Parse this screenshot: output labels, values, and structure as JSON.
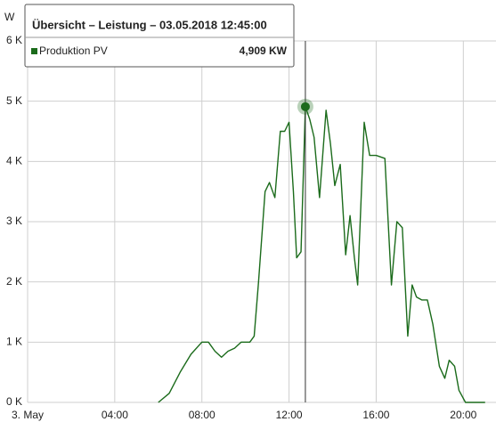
{
  "chart_data": {
    "type": "line",
    "ylabel": "W",
    "x": [
      6.0,
      6.5,
      7.0,
      7.5,
      8.0,
      8.3,
      8.6,
      8.9,
      9.2,
      9.5,
      9.8,
      10.2,
      10.4,
      10.6,
      10.9,
      11.1,
      11.35,
      11.6,
      11.8,
      12.0,
      12.2,
      12.35,
      12.55,
      12.75,
      12.95,
      13.15,
      13.4,
      13.7,
      13.9,
      14.1,
      14.35,
      14.6,
      14.8,
      15.0,
      15.15,
      15.45,
      15.7,
      16.0,
      16.4,
      16.7,
      16.95,
      17.2,
      17.45,
      17.65,
      17.85,
      18.1,
      18.35,
      18.6,
      18.9,
      19.15,
      19.35,
      19.6,
      19.8,
      20.1,
      21.0
    ],
    "series": [
      {
        "name": "Produktion PV",
        "color": "#1b6b1b",
        "values": [
          0,
          150,
          500,
          800,
          1000,
          1000,
          850,
          750,
          850,
          900,
          1000,
          1000,
          1100,
          2000,
          3500,
          3650,
          3400,
          4500,
          4500,
          4650,
          3500,
          2400,
          2500,
          4909,
          4700,
          4400,
          3400,
          4850,
          4300,
          3600,
          3950,
          2450,
          3100,
          2400,
          1950,
          4650,
          4100,
          4100,
          4050,
          1950,
          3000,
          2900,
          1100,
          1950,
          1750,
          1700,
          1700,
          1300,
          600,
          400,
          700,
          600,
          200,
          0,
          0
        ]
      }
    ],
    "xlim": [
      0,
      21.5
    ],
    "xticks": [
      {
        "value": 0,
        "label": "3. May"
      },
      {
        "value": 4,
        "label": "04:00"
      },
      {
        "value": 8,
        "label": "08:00"
      },
      {
        "value": 12,
        "label": "12:00"
      },
      {
        "value": 16,
        "label": "16:00"
      },
      {
        "value": 20,
        "label": "20:00"
      }
    ],
    "ylim": [
      0,
      6000
    ],
    "yticks": [
      {
        "value": 0,
        "label": "0 K"
      },
      {
        "value": 1000,
        "label": "1 K"
      },
      {
        "value": 2000,
        "label": "2 K"
      },
      {
        "value": 3000,
        "label": "3 K"
      },
      {
        "value": 4000,
        "label": "4 K"
      },
      {
        "value": 5000,
        "label": "5 K"
      },
      {
        "value": 6000,
        "label": "6 K"
      }
    ],
    "grid": true,
    "tooltip": {
      "title": "Übersicht – Leistung – 03.05.2018 12:45:00",
      "x": 12.75,
      "point": 23,
      "value_label": "4,909 KW"
    }
  }
}
